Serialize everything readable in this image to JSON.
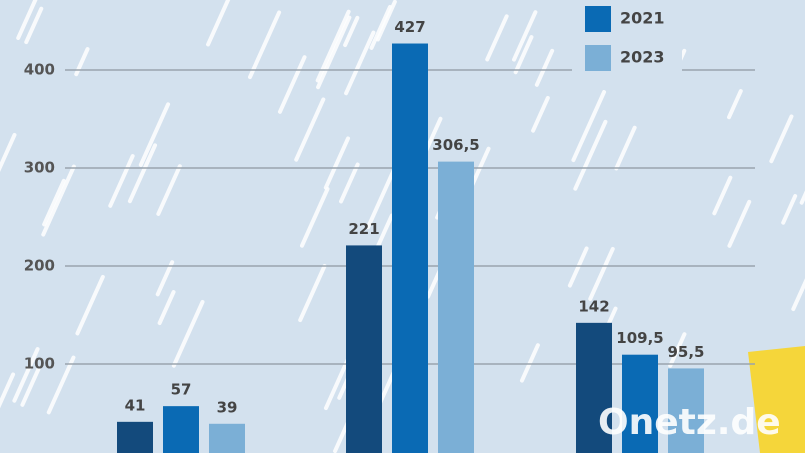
{
  "chart_data": {
    "type": "bar",
    "categories": [
      null,
      null,
      null
    ],
    "series": [
      {
        "color": "#134a7c",
        "values": [
          41,
          221,
          142
        ]
      },
      {
        "name": "2021",
        "color": "#0a6ab4",
        "values": [
          57,
          427,
          109.5
        ],
        "value_labels": [
          "57",
          "427",
          "109,5"
        ]
      },
      {
        "name": "2023",
        "color": "#7bafd6",
        "values": [
          39,
          306.5,
          95.5
        ],
        "value_labels": [
          "39",
          "306,5",
          "95,5"
        ]
      }
    ],
    "ylim": [
      9.2,
      471.4
    ],
    "yticks": [
      100,
      200,
      300,
      400
    ],
    "grid": true,
    "legend": "top-right",
    "watermark": "Onetz.de"
  }
}
